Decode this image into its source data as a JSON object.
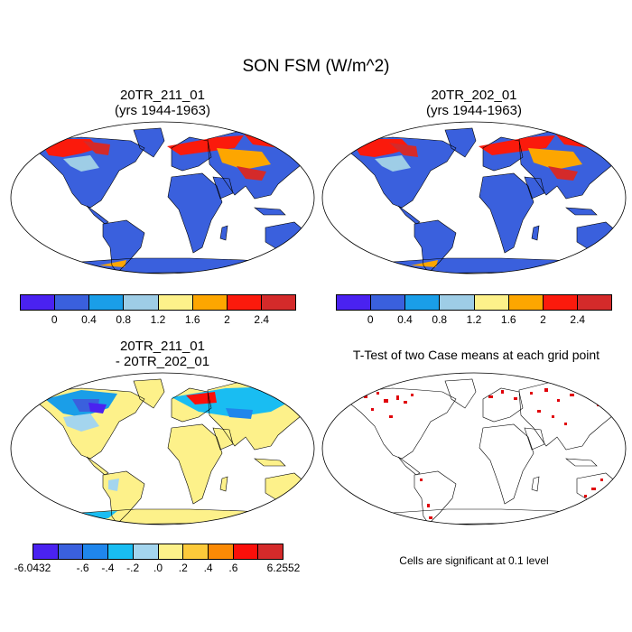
{
  "title": "SON FSM (W/m^2)",
  "panels": {
    "top_left": {
      "title_line1": "20TR_211_01",
      "title_line2": "(yrs 1944-1963)"
    },
    "top_right": {
      "title_line1": "20TR_202_01",
      "title_line2": "(yrs 1944-1963)"
    },
    "bottom_left": {
      "title_line1": "20TR_211_01",
      "title_line2": "- 20TR_202_01"
    },
    "bottom_right": {
      "title": "T-Test of two Case means at each grid point"
    }
  },
  "colorbars": {
    "absolute": {
      "colors": [
        "#4a22f0",
        "#3a60dd",
        "#1a9ee8",
        "#9ecde6",
        "#fdf18a",
        "#fda600",
        "#fb1a0c",
        "#d42a2a"
      ],
      "labels": [
        "0",
        "0.4",
        "0.8",
        "1.2",
        "1.6",
        "2",
        "2.4"
      ]
    },
    "difference": {
      "colors": [
        "#4a22f0",
        "#3a60dd",
        "#1f86ec",
        "#19bdf2",
        "#a4d5ee",
        "#fdf18a",
        "#fdca3a",
        "#fb8a05",
        "#fb0f0a",
        "#d42a2a"
      ],
      "labels": [
        "-6.0432",
        "-.6",
        "-.4",
        "-.2",
        ".0",
        ".2",
        ".4",
        ".6",
        "6.2552"
      ]
    }
  },
  "significance_note": "Cells are significant at 0.1 level",
  "colors": {
    "ocean": "#ffffff",
    "land_base": "#3a60dd",
    "diff_land_base": "#fdf18a",
    "significant": "#e0000a"
  }
}
